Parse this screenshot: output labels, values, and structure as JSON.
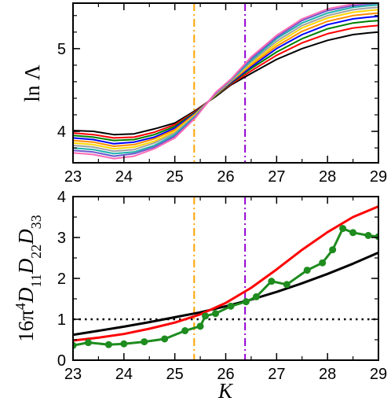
{
  "chart_data": [
    {
      "type": "line",
      "ylabel": "ln Λ",
      "xlim": [
        23,
        29
      ],
      "ylim": [
        3.62,
        5.55
      ],
      "xticks": [
        "23",
        "24",
        "25",
        "26",
        "27",
        "28",
        "29"
      ],
      "yticks": [
        {
          "value": 4,
          "label": "4"
        },
        {
          "value": 5,
          "label": "5"
        }
      ],
      "x": [
        23.0,
        23.4,
        23.8,
        24.2,
        24.6,
        25.0,
        25.4,
        25.8,
        26.1,
        26.5,
        27.0,
        27.5,
        28.0,
        28.5,
        28.8,
        29.0
      ],
      "series": [
        {
          "color": "#000000",
          "values": [
            4.01,
            4.0,
            3.96,
            3.97,
            4.03,
            4.1,
            4.25,
            4.42,
            4.56,
            4.7,
            4.87,
            5.0,
            5.1,
            5.17,
            5.19,
            5.2
          ]
        },
        {
          "color": "#ff0000",
          "values": [
            3.98,
            3.96,
            3.92,
            3.93,
            3.99,
            4.08,
            4.24,
            4.43,
            4.57,
            4.73,
            4.92,
            5.07,
            5.18,
            5.25,
            5.27,
            5.28
          ]
        },
        {
          "color": "#008000",
          "values": [
            3.95,
            3.93,
            3.89,
            3.9,
            3.96,
            4.06,
            4.23,
            4.43,
            4.58,
            4.76,
            4.96,
            5.12,
            5.24,
            5.31,
            5.33,
            5.34
          ]
        },
        {
          "color": "#0000ff",
          "values": [
            3.92,
            3.9,
            3.85,
            3.87,
            3.93,
            4.04,
            4.22,
            4.44,
            4.59,
            4.78,
            5.0,
            5.17,
            5.29,
            5.36,
            5.38,
            5.39
          ]
        },
        {
          "color": "#ff8c00",
          "values": [
            3.89,
            3.87,
            3.82,
            3.84,
            3.91,
            4.02,
            4.21,
            4.44,
            4.6,
            4.8,
            5.03,
            5.21,
            5.33,
            5.4,
            5.42,
            5.43
          ]
        },
        {
          "color": "#ffd700",
          "values": [
            3.86,
            3.84,
            3.79,
            3.81,
            3.88,
            4.0,
            4.2,
            4.45,
            4.61,
            4.82,
            5.06,
            5.25,
            5.37,
            5.44,
            5.46,
            5.47
          ]
        },
        {
          "color": "#a0a0a0",
          "values": [
            3.83,
            3.81,
            3.76,
            3.78,
            3.86,
            3.98,
            4.19,
            4.45,
            4.61,
            4.84,
            5.09,
            5.28,
            5.4,
            5.47,
            5.49,
            5.5
          ]
        },
        {
          "color": "#20b2aa",
          "values": [
            3.8,
            3.78,
            3.73,
            3.75,
            3.83,
            3.96,
            4.18,
            4.46,
            4.62,
            4.86,
            5.12,
            5.31,
            5.43,
            5.5,
            5.52,
            5.53
          ]
        },
        {
          "color": "#6a5acd",
          "values": [
            3.77,
            3.75,
            3.7,
            3.73,
            3.81,
            3.94,
            4.17,
            4.46,
            4.63,
            4.88,
            5.14,
            5.34,
            5.46,
            5.52,
            5.54,
            5.55
          ]
        },
        {
          "color": "#ff69b4",
          "values": [
            3.74,
            3.72,
            3.67,
            3.7,
            3.79,
            3.92,
            4.16,
            4.47,
            4.63,
            4.9,
            5.16,
            5.36,
            5.48,
            5.54,
            5.55,
            5.56
          ]
        }
      ],
      "vlines": [
        {
          "x": 25.38,
          "color": "#ffa500",
          "style": "dash-dot"
        },
        {
          "x": 26.38,
          "color": "#9400d3",
          "style": "dash-dot"
        }
      ]
    },
    {
      "type": "line",
      "xlabel": "K",
      "ylabel": {
        "prefix": "16π",
        "sup": "4",
        "d1": "D",
        "s1": "11",
        "d2": "D",
        "s2": "22",
        "d3": "D",
        "s3": "33"
      },
      "xlim": [
        23,
        29
      ],
      "ylim": [
        0,
        4
      ],
      "xticks": [
        "23",
        "24",
        "25",
        "26",
        "27",
        "28",
        "29"
      ],
      "yticks": [
        {
          "value": 0,
          "label": "0"
        },
        {
          "value": 1,
          "label": "1"
        },
        {
          "value": 2,
          "label": "2"
        },
        {
          "value": 3,
          "label": "3"
        },
        {
          "value": 4,
          "label": "4"
        }
      ],
      "series": [
        {
          "color": "#000000",
          "x": [
            23.0,
            23.5,
            24.0,
            24.5,
            25.0,
            25.5,
            26.0,
            26.5,
            27.0,
            27.5,
            28.0,
            28.5,
            29.0
          ],
          "values": [
            0.62,
            0.72,
            0.82,
            0.93,
            1.05,
            1.17,
            1.32,
            1.48,
            1.67,
            1.88,
            2.11,
            2.36,
            2.63
          ]
        },
        {
          "color": "#ff0000",
          "x": [
            23.0,
            23.5,
            24.0,
            24.5,
            25.0,
            25.5,
            26.0,
            26.5,
            27.0,
            27.5,
            28.0,
            28.5,
            29.0
          ],
          "values": [
            0.48,
            0.55,
            0.64,
            0.77,
            0.92,
            1.12,
            1.4,
            1.77,
            2.22,
            2.7,
            3.13,
            3.5,
            3.76
          ]
        },
        {
          "color": "#1e8c1e",
          "markers": true,
          "x": [
            23.0,
            23.3,
            23.7,
            24.0,
            24.4,
            24.8,
            25.2,
            25.5,
            25.6,
            25.8,
            26.1,
            26.4,
            26.6,
            26.9,
            27.2,
            27.6,
            27.9,
            28.1,
            28.3,
            28.5,
            28.8,
            29.0
          ],
          "values": [
            0.36,
            0.43,
            0.38,
            0.4,
            0.45,
            0.52,
            0.72,
            0.83,
            1.08,
            1.14,
            1.32,
            1.43,
            1.55,
            1.93,
            1.85,
            2.2,
            2.38,
            2.7,
            3.22,
            3.12,
            3.05,
            3.02
          ]
        }
      ],
      "hlines": [
        {
          "y": 1,
          "color": "#000000",
          "style": "dotted"
        }
      ],
      "vlines": [
        {
          "x": 25.38,
          "color": "#ffa500",
          "style": "dash-dot"
        },
        {
          "x": 26.38,
          "color": "#9400d3",
          "style": "dash-dot"
        }
      ]
    }
  ]
}
